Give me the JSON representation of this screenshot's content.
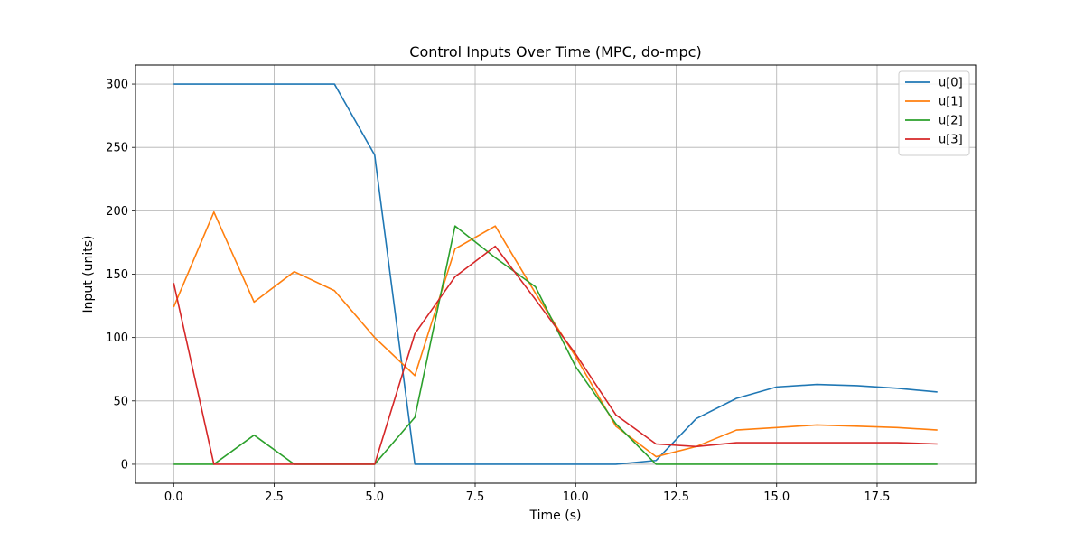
{
  "chart_data": {
    "type": "line",
    "title": "Control Inputs Over Time (MPC, do-mpc)",
    "xlabel": "Time (s)",
    "ylabel": "Input (units)",
    "xlim": [
      -0.95,
      19.95
    ],
    "ylim": [
      -15,
      315
    ],
    "xticks": [
      0.0,
      2.5,
      5.0,
      7.5,
      10.0,
      12.5,
      15.0,
      17.5
    ],
    "xtick_labels": [
      "0.0",
      "2.5",
      "5.0",
      "7.5",
      "10.0",
      "12.5",
      "15.0",
      "17.5"
    ],
    "yticks": [
      0,
      50,
      100,
      150,
      200,
      250,
      300
    ],
    "ytick_labels": [
      "0",
      "50",
      "100",
      "150",
      "200",
      "250",
      "300"
    ],
    "grid": true,
    "legend_position": "top-right",
    "x": [
      0,
      1,
      2,
      3,
      4,
      5,
      6,
      7,
      8,
      9,
      10,
      11,
      12,
      13,
      14,
      15,
      16,
      17,
      18,
      19
    ],
    "series": [
      {
        "name": "u[0]",
        "color": "#1f77b4",
        "values": [
          300,
          300,
          300,
          300,
          300,
          244,
          0,
          0,
          0,
          0,
          0,
          0,
          3,
          36,
          52,
          61,
          63,
          62,
          60,
          57
        ]
      },
      {
        "name": "u[1]",
        "color": "#ff7f0e",
        "values": [
          124,
          199,
          128,
          152,
          137,
          100,
          70,
          170,
          188,
          135,
          85,
          30,
          6,
          14,
          27,
          29,
          31,
          30,
          29,
          27
        ]
      },
      {
        "name": "u[2]",
        "color": "#2ca02c",
        "values": [
          0,
          0,
          23,
          0,
          0,
          0,
          37,
          188,
          163,
          140,
          77,
          32,
          0,
          0,
          0,
          0,
          0,
          0,
          0,
          0
        ]
      },
      {
        "name": "u[3]",
        "color": "#d62728",
        "values": [
          143,
          0,
          0,
          0,
          0,
          0,
          103,
          148,
          172,
          130,
          87,
          39,
          16,
          14,
          17,
          17,
          17,
          17,
          17,
          16
        ]
      }
    ]
  }
}
